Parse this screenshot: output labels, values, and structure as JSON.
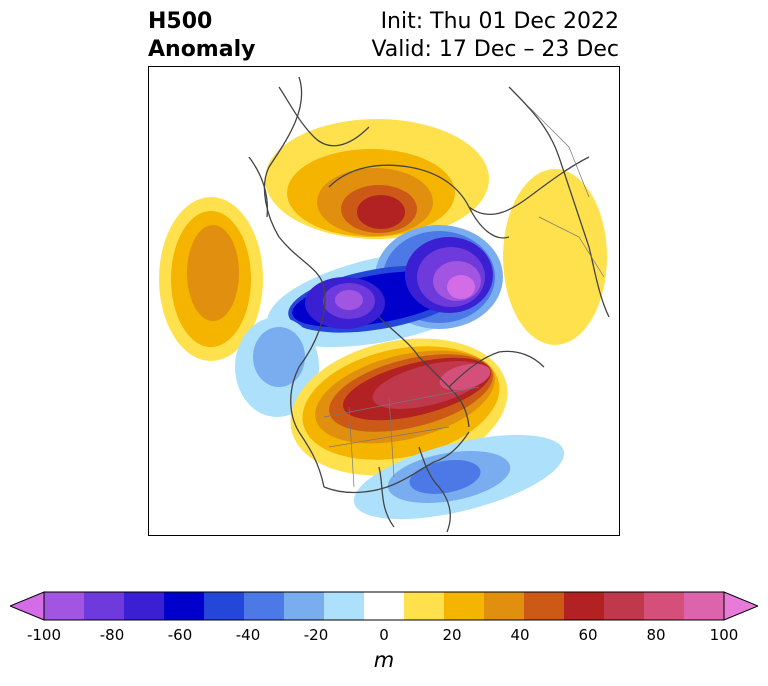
{
  "header": {
    "left_line1": "H500",
    "left_line2": "Anomaly",
    "right_line1": "Init: Thu 01 Dec 2022",
    "right_line2": "Valid: 17 Dec – 23 Dec"
  },
  "colorbar": {
    "ticks": [
      "-100",
      "-80",
      "-60",
      "-40",
      "-20",
      "0",
      "20",
      "40",
      "60",
      "80",
      "100"
    ],
    "unit": "m",
    "colors": [
      "#d36ce6",
      "#a155e0",
      "#6f3adb",
      "#3b1fd3",
      "#0000cc",
      "#2447d9",
      "#4d79e6",
      "#79adf0",
      "#ade0fa",
      "#ffffff",
      "#ffe14d",
      "#f4b400",
      "#e0900e",
      "#cc5a16",
      "#b22222",
      "#c0384c",
      "#d4507a",
      "#dc64ac",
      "#e87ad9"
    ]
  }
}
